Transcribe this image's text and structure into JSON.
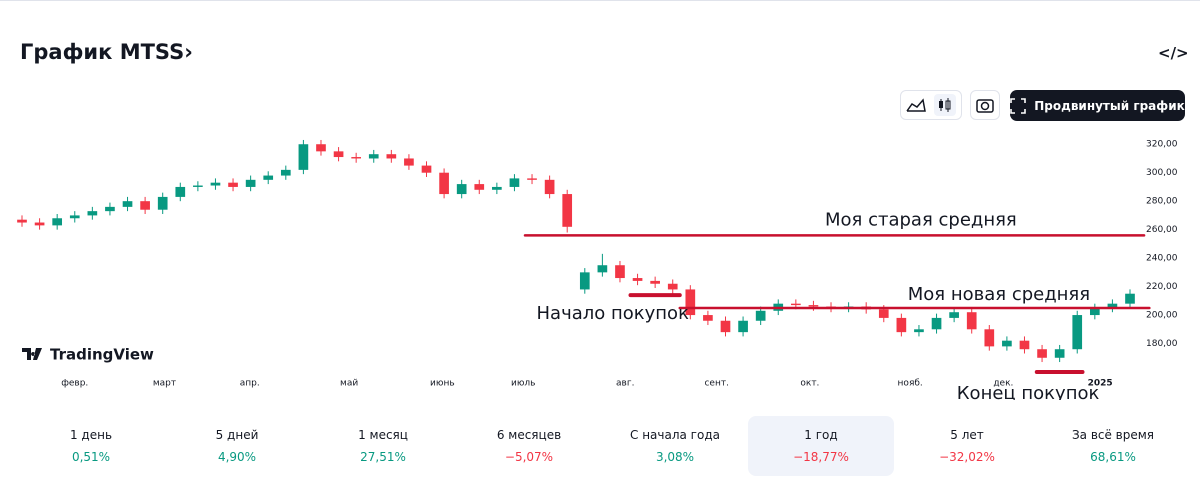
{
  "header": {
    "title": "График MTSS›",
    "embed_icon": "</>",
    "advanced_button": "Продвинутый график",
    "logo": "TradingView"
  },
  "chart_data": {
    "type": "candlestick",
    "open": [
      267,
      265,
      263,
      268,
      270,
      273,
      276,
      280,
      274,
      283,
      290,
      291,
      293,
      290,
      295,
      298,
      302,
      320,
      315,
      311,
      310,
      313,
      310,
      305,
      300,
      285,
      292,
      288,
      290,
      296,
      295,
      285,
      218,
      230,
      235,
      226,
      224,
      222,
      218,
      200,
      196,
      188,
      196,
      203,
      208,
      207,
      206,
      205,
      206,
      204,
      198,
      188,
      190,
      198,
      202,
      190,
      178,
      182,
      176,
      170,
      176,
      200,
      205,
      208
    ],
    "high": [
      270,
      268,
      271,
      273,
      276,
      279,
      283,
      283,
      286,
      293,
      294,
      296,
      296,
      298,
      301,
      305,
      323,
      323,
      318,
      314,
      316,
      316,
      313,
      308,
      303,
      295,
      295,
      293,
      299,
      299,
      298,
      288,
      233,
      243,
      238,
      229,
      227,
      225,
      221,
      203,
      199,
      199,
      206,
      211,
      211,
      210,
      209,
      209,
      209,
      207,
      201,
      193,
      201,
      205,
      205,
      193,
      185,
      185,
      179,
      179,
      203,
      208,
      211,
      218
    ],
    "low": [
      262,
      260,
      260,
      265,
      267,
      270,
      273,
      271,
      271,
      280,
      287,
      288,
      287,
      287,
      292,
      295,
      299,
      312,
      308,
      307,
      307,
      307,
      302,
      297,
      282,
      282,
      285,
      285,
      287,
      292,
      282,
      258,
      215,
      227,
      223,
      221,
      219,
      215,
      197,
      193,
      185,
      185,
      193,
      200,
      204,
      203,
      202,
      202,
      201,
      195,
      185,
      185,
      187,
      195,
      187,
      175,
      175,
      173,
      167,
      167,
      173,
      197,
      202,
      205
    ],
    "close": [
      265,
      263,
      268,
      270,
      273,
      276,
      280,
      274,
      283,
      290,
      291,
      293,
      290,
      295,
      298,
      302,
      320,
      315,
      311,
      310,
      313,
      310,
      305,
      300,
      285,
      292,
      288,
      290,
      296,
      295,
      285,
      262,
      230,
      235,
      226,
      224,
      222,
      218,
      200,
      196,
      188,
      196,
      203,
      208,
      207,
      206,
      205,
      206,
      204,
      198,
      188,
      190,
      198,
      202,
      190,
      178,
      182,
      176,
      170,
      176,
      200,
      205,
      208,
      215
    ],
    "up_color": "#089981",
    "down_color": "#f23645",
    "xlim": [
      0,
      63
    ],
    "xticks": [
      {
        "value": 3,
        "label": "февр."
      },
      {
        "value": 8.1,
        "label": "март"
      },
      {
        "value": 12.95,
        "label": "апр."
      },
      {
        "value": 18.6,
        "label": "май"
      },
      {
        "value": 23.9,
        "label": "июнь"
      },
      {
        "value": 28.5,
        "label": "июль"
      },
      {
        "value": 34.3,
        "label": "авг."
      },
      {
        "value": 39.5,
        "label": "сент."
      },
      {
        "value": 44.8,
        "label": "окт."
      },
      {
        "value": 50.5,
        "label": "нояб."
      },
      {
        "value": 55.8,
        "label": "дек."
      },
      {
        "value": 61.3,
        "label": "2025"
      }
    ],
    "ylim": [
      160,
      330
    ],
    "yticks": [
      {
        "value": 180,
        "label": "180,00"
      },
      {
        "value": 200,
        "label": "200,00"
      },
      {
        "value": 220,
        "label": "220,00"
      },
      {
        "value": 240,
        "label": "240,00"
      },
      {
        "value": 260,
        "label": "260,00"
      },
      {
        "value": 280,
        "label": "280,00"
      },
      {
        "value": 300,
        "label": "300,00"
      },
      {
        "value": 320,
        "label": "320,00"
      }
    ],
    "annotations": [
      {
        "label": "Моя старая средняя",
        "value": 256,
        "x": [
          28.6,
          63.8
        ],
        "color": "#c8102e"
      },
      {
        "label": "Моя новая средняя",
        "value": 205,
        "x": [
          37.4,
          64.1
        ],
        "color": "#c8102e"
      },
      {
        "label": "Начало покупок",
        "value": 214,
        "x": [
          34.6,
          37.4
        ],
        "color": "#c8102e"
      },
      {
        "label": "Конец покупок",
        "value": 160,
        "x": [
          57.7,
          60.3
        ],
        "color": "#c8102e"
      }
    ]
  },
  "periods": [
    {
      "label": "1 день",
      "change": "0,51%"
    },
    {
      "label": "5 дней",
      "change": "4,90%"
    },
    {
      "label": "1 месяц",
      "change": "27,51%"
    },
    {
      "label": "6 месяцев",
      "change": "−5,07%"
    },
    {
      "label": "С начала года",
      "change": "3,08%"
    },
    {
      "label": "1 год",
      "change": "−18,77%"
    },
    {
      "label": "5 лет",
      "change": "−32,02%"
    },
    {
      "label": "За всё время",
      "change": "68,61%"
    }
  ],
  "selected_period": 5
}
